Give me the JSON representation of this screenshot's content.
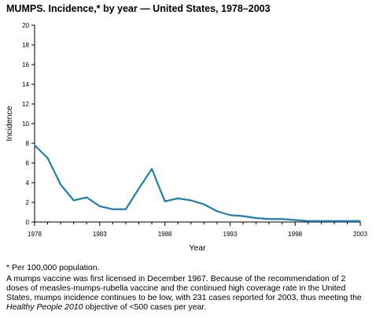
{
  "title": "MUMPS. Incidence,* by year — United States, 1978–2003",
  "footnote": "* Per 100,000 population.",
  "note": {
    "before": "A mumps vaccine was first licensed in December 1967. Because of the recommendation of 2 doses of measles-mumps-rubella vaccine and the continued high coverage rate in the United States, mumps incidence continues to be low, with 231 cases reported for 2003, thus meeting the ",
    "italic": "Healthy People 2010",
    "after": " objective of <500 cases per year."
  },
  "chart_data": {
    "type": "line",
    "title": "MUMPS. Incidence,* by year — United States, 1978–2003",
    "xlabel": "Year",
    "ylabel": "Incidence",
    "xlim": [
      1978,
      2003
    ],
    "ylim": [
      0,
      20
    ],
    "xticks": [
      1978,
      1983,
      1988,
      1993,
      1998,
      2003
    ],
    "yticks": [
      0,
      2,
      4,
      6,
      8,
      10,
      12,
      14,
      16,
      18,
      20
    ],
    "grid": false,
    "line_color": "#1f7fb0",
    "x": [
      1978,
      1979,
      1980,
      1981,
      1982,
      1983,
      1984,
      1985,
      1986,
      1987,
      1988,
      1989,
      1990,
      1991,
      1992,
      1993,
      1994,
      1995,
      1996,
      1997,
      1998,
      1999,
      2000,
      2001,
      2002,
      2003
    ],
    "values": [
      7.8,
      6.5,
      3.8,
      2.2,
      2.5,
      1.6,
      1.3,
      1.3,
      3.4,
      5.4,
      2.1,
      2.4,
      2.2,
      1.8,
      1.1,
      0.7,
      0.6,
      0.4,
      0.3,
      0.3,
      0.2,
      0.1,
      0.1,
      0.1,
      0.1,
      0.1
    ]
  }
}
